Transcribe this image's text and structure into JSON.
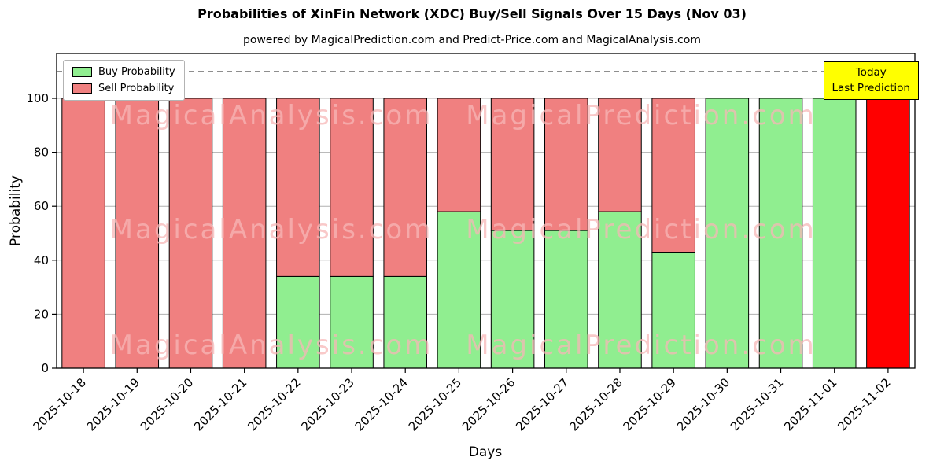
{
  "chart_data": {
    "type": "bar",
    "stacked": true,
    "title": "Probabilities of XinFin Network (XDC) Buy/Sell Signals Over 15 Days (Nov 03)",
    "subtitle": "powered by MagicalPrediction.com and Predict-Price.com and MagicalAnalysis.com",
    "xlabel": "Days",
    "ylabel": "Probability",
    "categories": [
      "2025-10-18",
      "2025-10-19",
      "2025-10-20",
      "2025-10-21",
      "2025-10-22",
      "2025-10-23",
      "2025-10-24",
      "2025-10-25",
      "2025-10-26",
      "2025-10-27",
      "2025-10-28",
      "2025-10-29",
      "2025-10-30",
      "2025-10-31",
      "2025-11-01",
      "2025-11-02"
    ],
    "series": [
      {
        "name": "Buy Probability",
        "color": "#90ee90",
        "values": [
          0,
          0,
          0,
          0,
          34,
          34,
          34,
          58,
          51,
          51,
          58,
          43,
          100,
          100,
          100,
          0
        ]
      },
      {
        "name": "Sell Probability",
        "color": "#f08080",
        "values": [
          100,
          100,
          100,
          100,
          66,
          66,
          66,
          42,
          49,
          49,
          42,
          57,
          0,
          0,
          0,
          100
        ]
      }
    ],
    "last_bar_sell_color": "#ff0000",
    "bar_edge_color": "#000000",
    "yticks": [
      0,
      20,
      40,
      60,
      80,
      100
    ],
    "ylim": [
      0,
      116.6
    ],
    "dashed_line_y": 110,
    "grid": true,
    "legend_position": "upper left"
  },
  "annotation": {
    "line1": "Today",
    "line2": "Last Prediction",
    "bg_color": "#ffff00"
  },
  "watermarks": {
    "texts": [
      "MagicalAnalysis.com",
      "MagicalPrediction.com"
    ],
    "color": "#f7b7b7"
  }
}
